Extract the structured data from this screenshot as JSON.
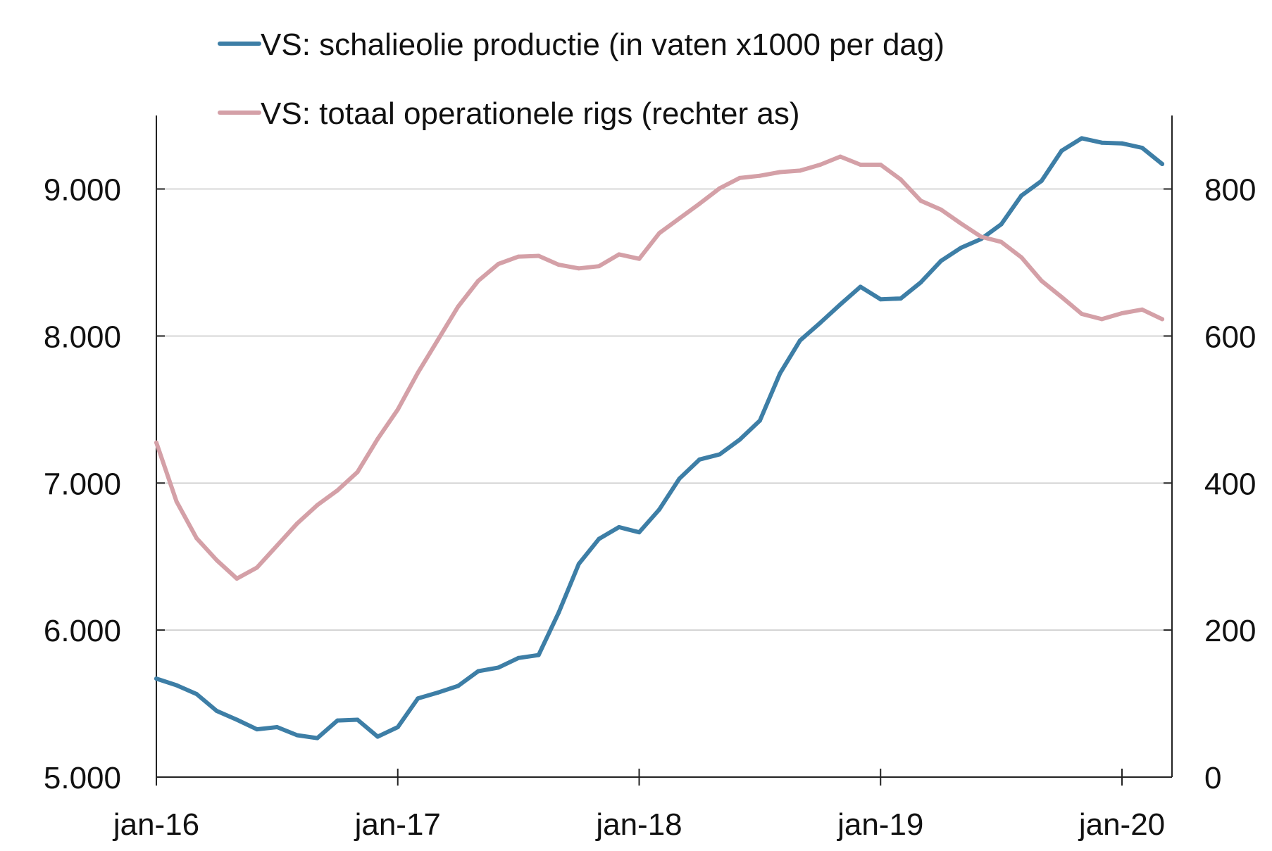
{
  "chart_data": {
    "type": "line",
    "title": "",
    "xlabel": "",
    "ylabel": "",
    "x_tick_labels": [
      "jan-16",
      "jan-17",
      "jan-18",
      "jan-19",
      "jan-20"
    ],
    "left_axis": {
      "range": [
        5000,
        9500
      ],
      "ticks": [
        5000,
        6000,
        7000,
        8000,
        9000
      ],
      "tick_labels": [
        "5.000",
        "6.000",
        "7.000",
        "8.000",
        "9.000"
      ]
    },
    "right_axis": {
      "range": [
        0,
        900
      ],
      "ticks": [
        0,
        200,
        400,
        600,
        800
      ],
      "tick_labels": [
        "0",
        "200",
        "400",
        "600",
        "800"
      ]
    },
    "grid": true,
    "legend_position": "top",
    "x_start": "2016-01",
    "series": [
      {
        "name": "VS: schalieolie productie (in vaten x1000 per dag)",
        "axis": "left",
        "color": "#3d7ea6",
        "values": [
          5670,
          5625,
          5565,
          5450,
          5390,
          5325,
          5340,
          5285,
          5265,
          5385,
          5390,
          5275,
          5340,
          5535,
          5575,
          5620,
          5720,
          5745,
          5810,
          5830,
          6120,
          6450,
          6620,
          6700,
          6665,
          6820,
          7030,
          7160,
          7195,
          7295,
          7425,
          7745,
          7970,
          8090,
          8215,
          8335,
          8250,
          8255,
          8365,
          8510,
          8600,
          8660,
          8760,
          8955,
          9055,
          9260,
          9345,
          9315,
          9310,
          9280,
          9170
        ]
      },
      {
        "name": "VS: totaal operationele rigs (rechter as)",
        "axis": "right",
        "color": "#d4a0a7",
        "values": [
          455,
          375,
          325,
          295,
          270,
          285,
          315,
          345,
          370,
          390,
          415,
          460,
          500,
          550,
          595,
          640,
          675,
          698,
          708,
          709,
          697,
          692,
          695,
          711,
          705,
          740,
          760,
          780,
          801,
          815,
          818,
          823,
          825,
          833,
          844,
          833,
          833,
          813,
          784,
          772,
          753,
          735,
          728,
          707,
          675,
          653,
          630,
          623,
          631,
          636,
          623
        ]
      }
    ]
  }
}
